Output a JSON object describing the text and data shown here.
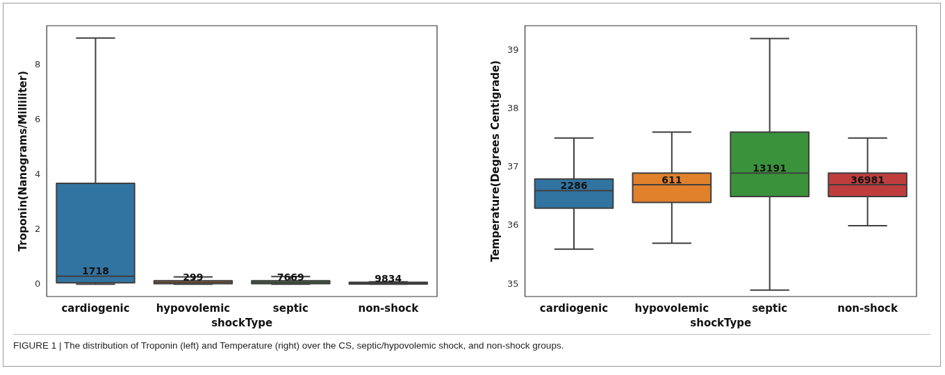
{
  "chart_data": [
    {
      "type": "box",
      "xlabel": "shockType",
      "ylabel": "Troponin(Nanograms/Milliliter)",
      "categories": [
        "cardiogenic",
        "hypovolemic",
        "septic",
        "non-shock"
      ],
      "boxes": [
        {
          "low": 0,
          "q1": 0.05,
          "median": 0.29,
          "q3": 3.69,
          "high": 9.0
        },
        {
          "low": 0,
          "q1": 0.02,
          "median": 0.07,
          "q3": 0.13,
          "high": 0.27
        },
        {
          "low": 0,
          "q1": 0.02,
          "median": 0.07,
          "q3": 0.13,
          "high": 0.28
        },
        {
          "low": 0,
          "q1": 0.01,
          "median": 0.03,
          "q3": 0.07,
          "high": 0.09
        }
      ],
      "colors": [
        "#3274a1",
        "#e1812c",
        "#3a923a",
        "#c03d3e"
      ],
      "ylim": [
        -0.45,
        9.45
      ],
      "yticks": [
        0,
        2,
        4,
        6,
        8
      ],
      "annotations": [
        {
          "text": "1718",
          "x": "cardiogenic",
          "y": 0.29
        },
        {
          "text": "299",
          "x": "hypovolemic",
          "y": 0.07
        },
        {
          "text": "7669",
          "x": "septic",
          "y": 0.07
        },
        {
          "text": "9834",
          "x": "non-shock",
          "y": 0.03
        },
        "FIGURE 1 | The distribution of Troponin (left) and Temperature (right) over the CS, septic/hypovolemic shock, and non-shock groups."
      ]
    },
    {
      "type": "box",
      "xlabel": "shockType",
      "ylabel": "Temperature(Degrees Centigrade)",
      "categories": [
        "cardiogenic",
        "hypovolemic",
        "septic",
        "non-shock"
      ],
      "boxes": [
        {
          "low": 35.6,
          "q1": 36.3,
          "median": 36.6,
          "q3": 36.8,
          "high": 37.5
        },
        {
          "low": 35.7,
          "q1": 36.4,
          "median": 36.7,
          "q3": 36.9,
          "high": 37.6
        },
        {
          "low": 34.9,
          "q1": 36.5,
          "median": 36.9,
          "q3": 37.6,
          "high": 39.2
        },
        {
          "low": 36.0,
          "q1": 36.5,
          "median": 36.7,
          "q3": 36.9,
          "high": 37.5
        }
      ],
      "colors": [
        "#3274a1",
        "#e1812c",
        "#3a923a",
        "#c03d3e"
      ],
      "ylim": [
        34.79,
        39.42
      ],
      "yticks": [
        35,
        36,
        37,
        38,
        39
      ],
      "annotations": [
        {
          "text": "2286",
          "x": "cardiogenic",
          "y": 36.6
        },
        {
          "text": "611",
          "x": "hypovolemic",
          "y": 36.7
        },
        {
          "text": "13191",
          "x": "septic",
          "y": 36.9
        },
        {
          "text": "36981",
          "x": "non-shock",
          "y": 36.7
        }
      ]
    }
  ]
}
